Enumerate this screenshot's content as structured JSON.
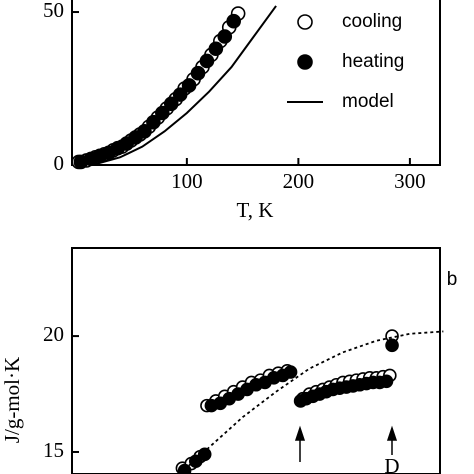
{
  "chart_data": [
    {
      "type": "scatter",
      "xlabel": "T, K",
      "xlim": [
        -3,
        327
      ],
      "xticks": [
        100,
        200,
        300
      ],
      "ylim": [
        0,
        57.2
      ],
      "yticks": [
        0,
        50
      ],
      "legend": "upper right",
      "series": [
        {
          "name": "cooling",
          "marker": "open",
          "color": "#000000",
          "x": [
            3,
            10,
            18,
            26,
            34,
            42,
            50,
            58,
            66,
            74,
            82,
            90,
            98,
            106,
            114,
            122,
            130,
            138,
            146
          ],
          "values": [
            1,
            1.5,
            2.5,
            3.5,
            4.8,
            6,
            8,
            10,
            12.5,
            15.5,
            18.5,
            21.5,
            25,
            28,
            32,
            36,
            40.5,
            45,
            49.5
          ]
        },
        {
          "name": "heating",
          "marker": "filled",
          "color": "#000000",
          "x": [
            5,
            14,
            22,
            30,
            38,
            46,
            54,
            62,
            70,
            78,
            86,
            94,
            102,
            110,
            118,
            126,
            134,
            142
          ],
          "values": [
            1,
            2,
            3,
            4,
            5.5,
            7,
            9,
            11,
            14,
            17,
            20,
            23,
            26,
            30,
            34,
            38,
            42,
            47
          ]
        },
        {
          "name": "model",
          "marker": "line",
          "line": "solid",
          "color": "#000000",
          "x": [
            0,
            20,
            40,
            60,
            80,
            100,
            120,
            140,
            160,
            180
          ],
          "values": [
            0,
            0.5,
            2.5,
            6,
            11,
            17,
            24,
            32,
            42,
            52
          ]
        }
      ]
    },
    {
      "type": "scatter",
      "ylabel": "J/g-mol·K",
      "annotations": [
        "b",
        "D"
      ],
      "xlim": [
        -3,
        327
      ],
      "ylim": [
        14.05,
        23.8
      ],
      "yticks": [
        15,
        20
      ],
      "series": [
        {
          "marker": "open",
          "color": "#000000",
          "x": [
            96,
            104,
            112,
            118,
            126,
            134,
            142,
            150,
            158,
            166,
            174,
            182,
            190,
            204,
            210,
            216,
            222,
            228,
            234,
            240,
            246,
            252,
            258,
            264,
            270,
            276,
            282,
            284
          ],
          "values": [
            14.3,
            14.5,
            14.8,
            17.0,
            17.2,
            17.4,
            17.6,
            17.8,
            18.0,
            18.1,
            18.3,
            18.4,
            18.5,
            17.3,
            17.5,
            17.6,
            17.7,
            17.8,
            17.9,
            18.0,
            18.05,
            18.1,
            18.15,
            18.2,
            18.2,
            18.25,
            18.3,
            20.0
          ]
        },
        {
          "marker": "filled",
          "color": "#000000",
          "x": [
            98,
            108,
            116,
            122,
            130,
            138,
            146,
            154,
            162,
            170,
            178,
            186,
            193,
            202,
            207,
            213,
            219,
            225,
            231,
            237,
            243,
            249,
            255,
            261,
            267,
            273,
            279,
            284
          ],
          "values": [
            14.2,
            14.6,
            14.9,
            17.0,
            17.1,
            17.3,
            17.5,
            17.7,
            17.9,
            18.0,
            18.2,
            18.3,
            18.45,
            17.2,
            17.3,
            17.4,
            17.5,
            17.6,
            17.7,
            17.75,
            17.8,
            17.85,
            17.9,
            17.95,
            18.0,
            18.0,
            18.05,
            19.6
          ]
        },
        {
          "marker": "line",
          "line": "dotted",
          "color": "#000000",
          "x": [
            90,
            120,
            150,
            180,
            210,
            240,
            270,
            300,
            330
          ],
          "values": [
            13.9,
            15.2,
            16.5,
            17.6,
            18.6,
            19.3,
            19.8,
            20.1,
            20.2
          ]
        }
      ]
    }
  ]
}
